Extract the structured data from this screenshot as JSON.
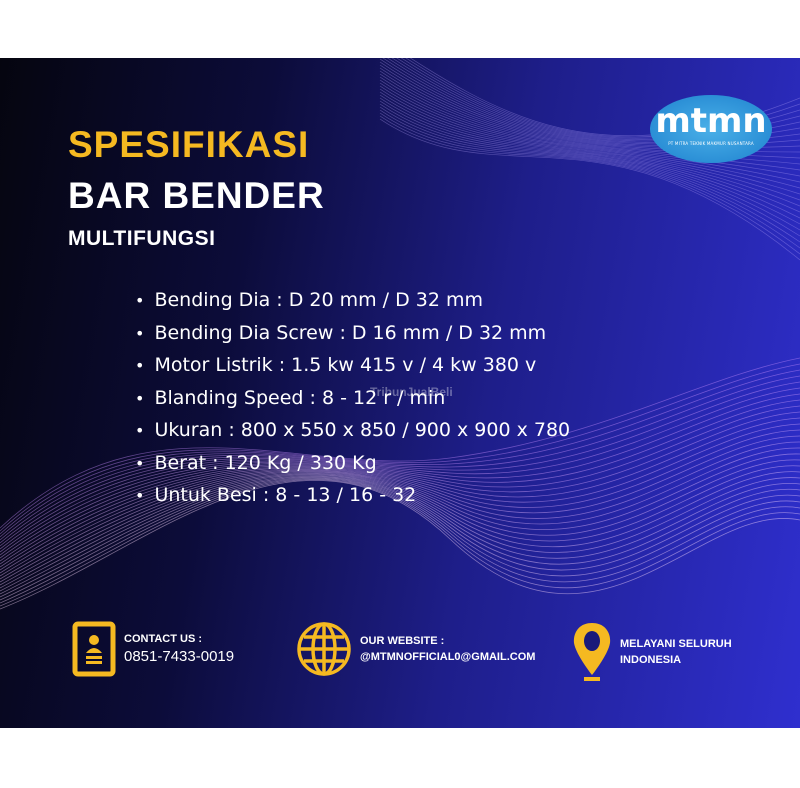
{
  "title": {
    "line1": "SPESIFIKASI",
    "line2": "BAR BENDER",
    "line3": "MULTIFUNGSI"
  },
  "logo": {
    "text": "mtmn",
    "subtitle": "PT MITRA TEKNIK MAKMUR NUSANTARA"
  },
  "specs": [
    "Bending Dia : D 20 mm / D 32 mm",
    "Bending Dia Screw : D 16 mm / D 32 mm",
    "Motor Listrik : 1.5 kw 415 v / 4 kw 380 v",
    "Blanding Speed : 8 - 12 r / min",
    "Ukuran : 800 x 550 x 850 / 900 x 900 x 780",
    "Berat : 120 Kg / 330 Kg",
    "Untuk Besi : 8 - 13 / 16 - 32"
  ],
  "watermark": "TribunJualBeli",
  "footer": {
    "contact": {
      "label": "CONTACT US :",
      "value": "0851-7433-0019",
      "icon": "contact-card-icon"
    },
    "website": {
      "label": "OUR WEBSITE :",
      "value": "@MTMNOFFICIAL0@GMAIL.COM",
      "icon": "globe-icon"
    },
    "location": {
      "line1": "MELAYANI SELURUH",
      "line2": "INDONESIA",
      "icon": "map-pin-icon"
    }
  },
  "colors": {
    "accent": "#f5b921",
    "bg_dark": "#05050f",
    "bg_blue": "#2f2fcf"
  }
}
